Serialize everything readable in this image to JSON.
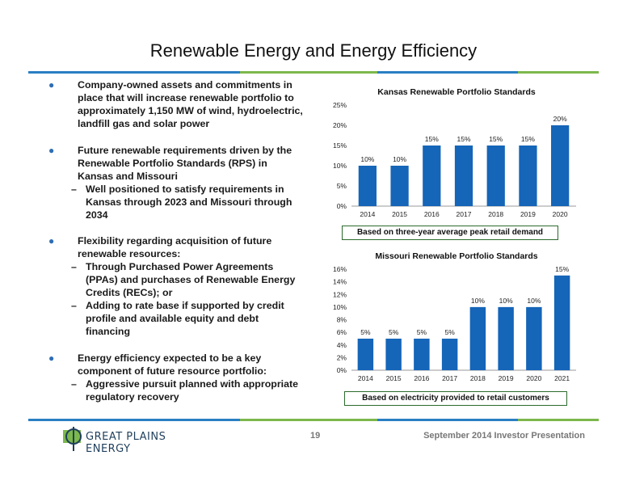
{
  "title": "Renewable Energy and Energy Efficiency",
  "colors": {
    "bar": "#1565b8",
    "bullet": "#2e6db4",
    "rule": [
      "#2a7fc4",
      "#7cb84b",
      "#2a7fc4",
      "#7cb84b"
    ],
    "note_border": "#2c6a2c"
  },
  "bullets": [
    {
      "text": "Company-owned assets and commitments in place that will increase renewable portfolio to approximately 1,150 MW of wind, hydroelectric, landfill gas and solar power",
      "subs": []
    },
    {
      "text": "Future renewable requirements driven by the Renewable Portfolio Standards (RPS) in Kansas and Missouri",
      "subs": [
        "Well positioned to satisfy requirements in Kansas through 2023 and Missouri through 2034"
      ]
    },
    {
      "text": "Flexibility regarding acquisition of future renewable resources:",
      "subs": [
        "Through Purchased Power Agreements (PPAs) and purchases of Renewable Energy Credits (RECs); or",
        "Adding to rate base if supported by credit profile and available equity and debt financing"
      ]
    },
    {
      "text": "Energy efficiency expected to be a key component of future resource portfolio:",
      "subs": [
        "Aggressive pursuit planned with appropriate regulatory recovery"
      ]
    }
  ],
  "chart_data": [
    {
      "type": "bar",
      "title": "Kansas Renewable Portfolio Standards",
      "categories": [
        "2014",
        "2015",
        "2016",
        "2017",
        "2018",
        "2019",
        "2020"
      ],
      "values": [
        10,
        10,
        15,
        15,
        15,
        15,
        20
      ],
      "data_labels": [
        "10%",
        "10%",
        "15%",
        "15%",
        "15%",
        "15%",
        "20%"
      ],
      "ylim": [
        0,
        25
      ],
      "yticks": [
        0,
        5,
        10,
        15,
        20,
        25
      ],
      "ytick_labels": [
        "0%",
        "5%",
        "10%",
        "15%",
        "20%",
        "25%"
      ],
      "note": "Based on three-year average peak retail demand"
    },
    {
      "type": "bar",
      "title": "Missouri Renewable Portfolio Standards",
      "categories": [
        "2014",
        "2015",
        "2016",
        "2017",
        "2018",
        "2019",
        "2020",
        "2021"
      ],
      "values": [
        5,
        5,
        5,
        5,
        10,
        10,
        10,
        15
      ],
      "data_labels": [
        "5%",
        "5%",
        "5%",
        "5%",
        "10%",
        "10%",
        "10%",
        "15%"
      ],
      "ylim": [
        0,
        16
      ],
      "yticks": [
        0,
        2,
        4,
        6,
        8,
        10,
        12,
        14,
        16
      ],
      "ytick_labels": [
        "0%",
        "2%",
        "4%",
        "6%",
        "8%",
        "10%",
        "12%",
        "14%",
        "16%"
      ],
      "note": "Based on electricity provided to retail customers"
    }
  ],
  "footer": {
    "logo_text": "GREAT PLAINS ENERGY",
    "page_number": "19",
    "presentation": "September 2014 Investor Presentation"
  }
}
